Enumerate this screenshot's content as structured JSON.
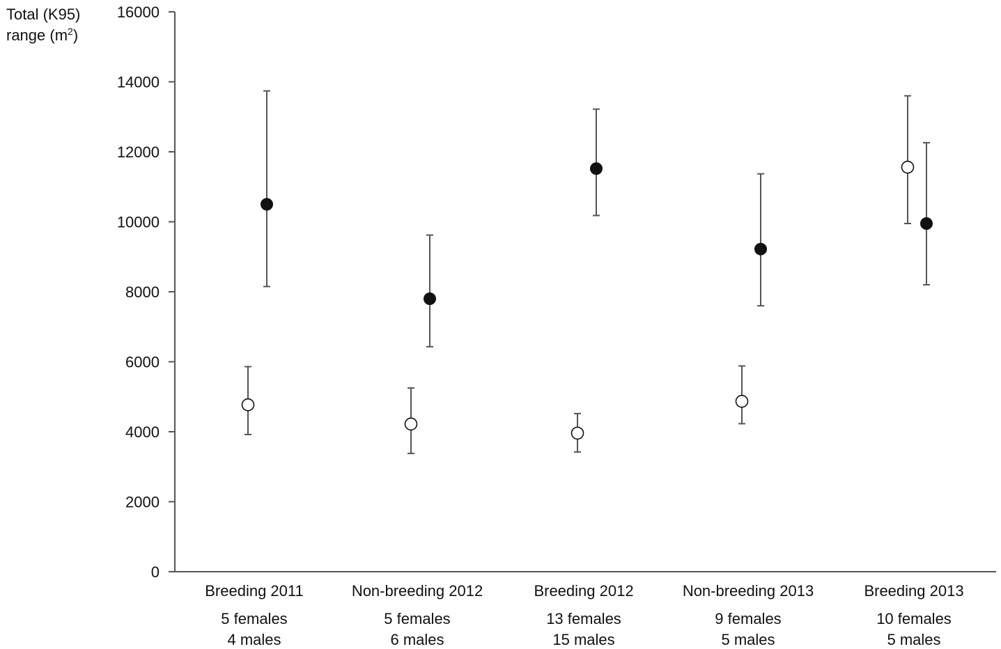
{
  "chart_data": {
    "type": "scatter",
    "ylabel_line1": "Total (K95)",
    "ylabel_line2_prefix": "range (m",
    "ylabel_sup": "2",
    "ylabel_line2_suffix": ")",
    "ylim": [
      0,
      16000
    ],
    "yticks": [
      0,
      2000,
      4000,
      6000,
      8000,
      10000,
      12000,
      14000,
      16000
    ],
    "grid": false,
    "categories": [
      {
        "label": "Breeding 2011",
        "sub1": "5 females",
        "sub2": "4 males"
      },
      {
        "label": "Non-breeding 2012",
        "sub1": "5 females",
        "sub2": "6 males"
      },
      {
        "label": "Breeding 2012",
        "sub1": "13 females",
        "sub2": "15 males"
      },
      {
        "label": "Non-breeding 2013",
        "sub1": "9 females",
        "sub2": "5 males"
      },
      {
        "label": "Breeding 2013",
        "sub1": "10 females",
        "sub2": "5 males"
      }
    ],
    "series": [
      {
        "marker": "open-circle",
        "color": "#111111",
        "values": [
          4770,
          4220,
          3960,
          4870,
          11560
        ],
        "err_low": [
          3920,
          3380,
          3420,
          4230,
          9950
        ],
        "err_high": [
          5860,
          5250,
          4520,
          5880,
          13600
        ]
      },
      {
        "marker": "filled-circle",
        "color": "#111111",
        "values": [
          10500,
          7800,
          11520,
          9220,
          9950
        ],
        "err_low": [
          8150,
          6430,
          10180,
          7600,
          8200
        ],
        "err_high": [
          13740,
          9620,
          13220,
          11370,
          12260
        ]
      }
    ]
  }
}
